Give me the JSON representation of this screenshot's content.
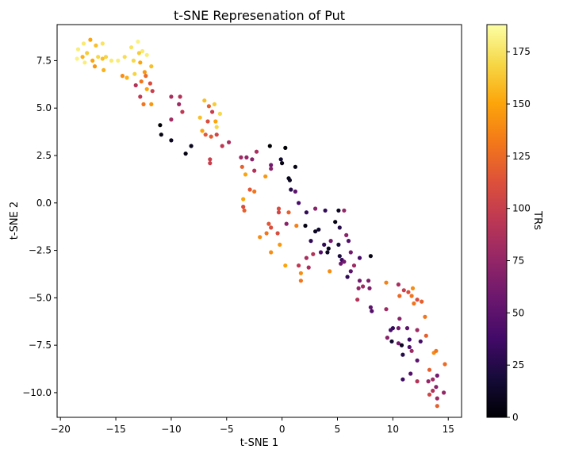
{
  "chart_data": {
    "type": "scatter",
    "title": "t-SNE Represenation of Put",
    "xlabel": "t-SNE 1",
    "ylabel": "t-SNE 2",
    "xlim": [
      -20.3,
      16.2
    ],
    "ylim": [
      -11.3,
      9.4
    ],
    "xticks": [
      -20,
      -15,
      -10,
      -5,
      0,
      5,
      10,
      15
    ],
    "xtick_labels": [
      "−20",
      "−15",
      "−10",
      "−5",
      "0",
      "5",
      "10",
      "15"
    ],
    "yticks": [
      -10.0,
      -7.5,
      -5.0,
      -2.5,
      0.0,
      2.5,
      5.0,
      7.5
    ],
    "ytick_labels": [
      "−10.0",
      "−7.5",
      "−5.0",
      "−2.5",
      "0.0",
      "2.5",
      "5.0",
      "7.5"
    ],
    "grid": false,
    "legend": "none",
    "colorbar": {
      "label": "TRs",
      "colormap": "inferno",
      "range": [
        0,
        188
      ],
      "ticks": [
        0,
        25,
        50,
        75,
        100,
        125,
        150,
        175
      ],
      "tick_labels": [
        "0",
        "25",
        "50",
        "75",
        "100",
        "125",
        "150",
        "175"
      ]
    },
    "points": [
      {
        "x": -18.4,
        "y": 8.1,
        "c": 180
      },
      {
        "x": -17.9,
        "y": 8.4,
        "c": 178
      },
      {
        "x": -17.3,
        "y": 8.6,
        "c": 150
      },
      {
        "x": -16.8,
        "y": 8.3,
        "c": 160
      },
      {
        "x": -16.2,
        "y": 8.4,
        "c": 175
      },
      {
        "x": -18.0,
        "y": 7.7,
        "c": 155
      },
      {
        "x": -17.6,
        "y": 7.9,
        "c": 165
      },
      {
        "x": -17.1,
        "y": 7.5,
        "c": 150
      },
      {
        "x": -16.6,
        "y": 7.7,
        "c": 170
      },
      {
        "x": -16.2,
        "y": 7.6,
        "c": 160
      },
      {
        "x": -15.9,
        "y": 7.7,
        "c": 168
      },
      {
        "x": -18.5,
        "y": 7.6,
        "c": 182
      },
      {
        "x": -17.8,
        "y": 7.4,
        "c": 180
      },
      {
        "x": -16.9,
        "y": 7.2,
        "c": 145
      },
      {
        "x": -16.1,
        "y": 7.0,
        "c": 155
      },
      {
        "x": -15.4,
        "y": 7.5,
        "c": 178
      },
      {
        "x": -14.8,
        "y": 7.5,
        "c": 180
      },
      {
        "x": -14.2,
        "y": 7.7,
        "c": 172
      },
      {
        "x": -13.6,
        "y": 8.2,
        "c": 175
      },
      {
        "x": -13.0,
        "y": 8.5,
        "c": 182
      },
      {
        "x": -12.6,
        "y": 8.0,
        "c": 178
      },
      {
        "x": -12.2,
        "y": 7.8,
        "c": 180
      },
      {
        "x": -12.9,
        "y": 7.9,
        "c": 165
      },
      {
        "x": -13.4,
        "y": 7.5,
        "c": 170
      },
      {
        "x": -12.8,
        "y": 7.4,
        "c": 150
      },
      {
        "x": -11.8,
        "y": 7.2,
        "c": 160
      },
      {
        "x": -12.4,
        "y": 6.9,
        "c": 145
      },
      {
        "x": -13.3,
        "y": 6.8,
        "c": 168
      },
      {
        "x": -14.4,
        "y": 6.7,
        "c": 140
      },
      {
        "x": -14.0,
        "y": 6.6,
        "c": 155
      },
      {
        "x": -12.7,
        "y": 6.4,
        "c": 130
      },
      {
        "x": -12.3,
        "y": 6.7,
        "c": 125
      },
      {
        "x": -11.9,
        "y": 6.3,
        "c": 110
      },
      {
        "x": -13.2,
        "y": 6.2,
        "c": 90
      },
      {
        "x": -12.2,
        "y": 6.0,
        "c": 150
      },
      {
        "x": -12.8,
        "y": 5.6,
        "c": 95
      },
      {
        "x": -11.7,
        "y": 5.9,
        "c": 100
      },
      {
        "x": -12.5,
        "y": 5.2,
        "c": 130
      },
      {
        "x": -11.8,
        "y": 5.2,
        "c": 145
      },
      {
        "x": -10.0,
        "y": 5.6,
        "c": 85
      },
      {
        "x": -9.2,
        "y": 5.6,
        "c": 90
      },
      {
        "x": -9.3,
        "y": 5.2,
        "c": 80
      },
      {
        "x": -9.0,
        "y": 4.8,
        "c": 95
      },
      {
        "x": -10.0,
        "y": 4.4,
        "c": 82
      },
      {
        "x": -11.0,
        "y": 4.1,
        "c": 0
      },
      {
        "x": -10.9,
        "y": 3.6,
        "c": 5
      },
      {
        "x": -10.0,
        "y": 3.3,
        "c": 10
      },
      {
        "x": -8.7,
        "y": 2.6,
        "c": 5
      },
      {
        "x": -8.2,
        "y": 3.0,
        "c": 8
      },
      {
        "x": -7.0,
        "y": 5.4,
        "c": 160
      },
      {
        "x": -6.6,
        "y": 5.1,
        "c": 120
      },
      {
        "x": -6.3,
        "y": 4.8,
        "c": 100
      },
      {
        "x": -6.1,
        "y": 5.2,
        "c": 165
      },
      {
        "x": -5.6,
        "y": 4.7,
        "c": 170
      },
      {
        "x": -7.4,
        "y": 4.5,
        "c": 160
      },
      {
        "x": -6.7,
        "y": 4.3,
        "c": 110
      },
      {
        "x": -5.9,
        "y": 4.0,
        "c": 170
      },
      {
        "x": -6.0,
        "y": 4.3,
        "c": 150
      },
      {
        "x": -7.2,
        "y": 3.8,
        "c": 150
      },
      {
        "x": -6.9,
        "y": 3.6,
        "c": 115
      },
      {
        "x": -6.4,
        "y": 3.5,
        "c": 118
      },
      {
        "x": -5.9,
        "y": 3.6,
        "c": 105
      },
      {
        "x": -5.4,
        "y": 3.0,
        "c": 95
      },
      {
        "x": -4.8,
        "y": 3.2,
        "c": 85
      },
      {
        "x": -6.5,
        "y": 2.3,
        "c": 100
      },
      {
        "x": -6.5,
        "y": 2.1,
        "c": 100
      },
      {
        "x": -3.7,
        "y": 2.4,
        "c": 80
      },
      {
        "x": -3.2,
        "y": 2.4,
        "c": 75
      },
      {
        "x": -2.3,
        "y": 2.7,
        "c": 85
      },
      {
        "x": -2.7,
        "y": 2.3,
        "c": 70
      },
      {
        "x": -3.6,
        "y": 1.9,
        "c": 120
      },
      {
        "x": -2.5,
        "y": 1.7,
        "c": 90
      },
      {
        "x": -3.3,
        "y": 1.5,
        "c": 150
      },
      {
        "x": -1.5,
        "y": 1.4,
        "c": 145
      },
      {
        "x": -1.1,
        "y": 3.0,
        "c": 0
      },
      {
        "x": 0.3,
        "y": 2.9,
        "c": 0
      },
      {
        "x": -0.1,
        "y": 2.3,
        "c": 15
      },
      {
        "x": 0.0,
        "y": 2.1,
        "c": 5
      },
      {
        "x": -1.0,
        "y": 2.0,
        "c": 60
      },
      {
        "x": -1.0,
        "y": 1.8,
        "c": 70
      },
      {
        "x": 0.6,
        "y": 1.3,
        "c": 8
      },
      {
        "x": 0.7,
        "y": 1.2,
        "c": 10
      },
      {
        "x": 1.2,
        "y": 1.9,
        "c": 5
      },
      {
        "x": 0.8,
        "y": 0.7,
        "c": 25
      },
      {
        "x": 1.2,
        "y": 0.6,
        "c": 50
      },
      {
        "x": 1.5,
        "y": 0.0,
        "c": 40
      },
      {
        "x": -2.9,
        "y": 0.7,
        "c": 115
      },
      {
        "x": -2.5,
        "y": 0.6,
        "c": 130
      },
      {
        "x": -3.5,
        "y": 0.2,
        "c": 150
      },
      {
        "x": -3.5,
        "y": -0.2,
        "c": 110
      },
      {
        "x": -3.4,
        "y": -0.4,
        "c": 120
      },
      {
        "x": -0.3,
        "y": -0.3,
        "c": 110
      },
      {
        "x": -0.3,
        "y": -0.5,
        "c": 105
      },
      {
        "x": 0.6,
        "y": -0.5,
        "c": 120
      },
      {
        "x": 2.2,
        "y": -0.5,
        "c": 30
      },
      {
        "x": 3.0,
        "y": -0.3,
        "c": 70
      },
      {
        "x": 3.9,
        "y": -0.4,
        "c": 30
      },
      {
        "x": 5.1,
        "y": -0.4,
        "c": 10
      },
      {
        "x": 5.6,
        "y": -0.4,
        "c": 75
      },
      {
        "x": -1.2,
        "y": -1.1,
        "c": 115
      },
      {
        "x": -1.0,
        "y": -1.3,
        "c": 110
      },
      {
        "x": 0.4,
        "y": -1.1,
        "c": 70
      },
      {
        "x": 1.3,
        "y": -1.2,
        "c": 135
      },
      {
        "x": 2.1,
        "y": -1.2,
        "c": 5
      },
      {
        "x": 3.0,
        "y": -1.5,
        "c": 10
      },
      {
        "x": 3.3,
        "y": -1.4,
        "c": 15
      },
      {
        "x": 4.8,
        "y": -1.0,
        "c": 5
      },
      {
        "x": 5.2,
        "y": -1.3,
        "c": 25
      },
      {
        "x": 5.8,
        "y": -1.7,
        "c": 70
      },
      {
        "x": -2.0,
        "y": -1.8,
        "c": 140
      },
      {
        "x": -1.4,
        "y": -1.6,
        "c": 130
      },
      {
        "x": -0.4,
        "y": -1.6,
        "c": 110
      },
      {
        "x": 2.6,
        "y": -2.0,
        "c": 30
      },
      {
        "x": 3.8,
        "y": -2.2,
        "c": 30
      },
      {
        "x": 4.4,
        "y": -2.0,
        "c": 60
      },
      {
        "x": 5.1,
        "y": -2.2,
        "c": 20
      },
      {
        "x": 6.0,
        "y": -2.0,
        "c": 45
      },
      {
        "x": -0.2,
        "y": -2.2,
        "c": 145
      },
      {
        "x": -1.0,
        "y": -2.6,
        "c": 140
      },
      {
        "x": 2.2,
        "y": -2.9,
        "c": 85
      },
      {
        "x": 2.8,
        "y": -2.7,
        "c": 90
      },
      {
        "x": 3.5,
        "y": -2.6,
        "c": 45
      },
      {
        "x": 4.2,
        "y": -2.4,
        "c": 10
      },
      {
        "x": 4.1,
        "y": -2.6,
        "c": 10
      },
      {
        "x": 5.2,
        "y": -2.8,
        "c": 20
      },
      {
        "x": 5.4,
        "y": -3.0,
        "c": 35
      },
      {
        "x": 6.2,
        "y": -2.6,
        "c": 60
      },
      {
        "x": 0.3,
        "y": -3.3,
        "c": 150
      },
      {
        "x": 1.5,
        "y": -3.3,
        "c": 95
      },
      {
        "x": 2.4,
        "y": -3.4,
        "c": 85
      },
      {
        "x": 5.3,
        "y": -3.2,
        "c": 55
      },
      {
        "x": 5.6,
        "y": -3.1,
        "c": 60
      },
      {
        "x": 7.0,
        "y": -2.9,
        "c": 40
      },
      {
        "x": 8.0,
        "y": -2.8,
        "c": 5
      },
      {
        "x": 1.7,
        "y": -3.7,
        "c": 140
      },
      {
        "x": 4.3,
        "y": -3.6,
        "c": 140
      },
      {
        "x": 6.2,
        "y": -3.6,
        "c": 50
      },
      {
        "x": 6.5,
        "y": -3.3,
        "c": 80
      },
      {
        "x": 1.7,
        "y": -4.1,
        "c": 130
      },
      {
        "x": 5.9,
        "y": -3.9,
        "c": 30
      },
      {
        "x": 7.0,
        "y": -4.1,
        "c": 60
      },
      {
        "x": 7.8,
        "y": -4.1,
        "c": 65
      },
      {
        "x": 6.9,
        "y": -4.5,
        "c": 75
      },
      {
        "x": 7.3,
        "y": -4.4,
        "c": 80
      },
      {
        "x": 7.9,
        "y": -4.5,
        "c": 65
      },
      {
        "x": 6.8,
        "y": -5.1,
        "c": 90
      },
      {
        "x": 8.0,
        "y": -5.5,
        "c": 50
      },
      {
        "x": 8.1,
        "y": -5.7,
        "c": 45
      },
      {
        "x": 9.4,
        "y": -4.2,
        "c": 135
      },
      {
        "x": 10.5,
        "y": -4.3,
        "c": 85
      },
      {
        "x": 11.0,
        "y": -4.6,
        "c": 100
      },
      {
        "x": 11.4,
        "y": -4.7,
        "c": 110
      },
      {
        "x": 11.8,
        "y": -4.5,
        "c": 140
      },
      {
        "x": 10.6,
        "y": -4.9,
        "c": 125
      },
      {
        "x": 11.7,
        "y": -4.9,
        "c": 130
      },
      {
        "x": 12.2,
        "y": -5.1,
        "c": 110
      },
      {
        "x": 12.6,
        "y": -5.2,
        "c": 120
      },
      {
        "x": 11.9,
        "y": -5.3,
        "c": 130
      },
      {
        "x": 9.4,
        "y": -5.6,
        "c": 80
      },
      {
        "x": 10.6,
        "y": -6.1,
        "c": 70
      },
      {
        "x": 12.9,
        "y": -6.0,
        "c": 130
      },
      {
        "x": 10.0,
        "y": -6.6,
        "c": 30
      },
      {
        "x": 9.8,
        "y": -6.7,
        "c": 40
      },
      {
        "x": 10.5,
        "y": -6.6,
        "c": 60
      },
      {
        "x": 11.3,
        "y": -6.6,
        "c": 50
      },
      {
        "x": 12.2,
        "y": -6.7,
        "c": 80
      },
      {
        "x": 9.5,
        "y": -7.1,
        "c": 70
      },
      {
        "x": 9.9,
        "y": -7.3,
        "c": 15
      },
      {
        "x": 10.5,
        "y": -7.4,
        "c": 60
      },
      {
        "x": 10.8,
        "y": -7.5,
        "c": 10
      },
      {
        "x": 11.5,
        "y": -7.2,
        "c": 35
      },
      {
        "x": 11.5,
        "y": -7.6,
        "c": 45
      },
      {
        "x": 12.5,
        "y": -7.3,
        "c": 40
      },
      {
        "x": 13.0,
        "y": -7.0,
        "c": 120
      },
      {
        "x": 11.7,
        "y": -7.8,
        "c": 80
      },
      {
        "x": 10.9,
        "y": -8.0,
        "c": 25
      },
      {
        "x": 12.2,
        "y": -8.3,
        "c": 50
      },
      {
        "x": 13.7,
        "y": -7.9,
        "c": 140
      },
      {
        "x": 13.9,
        "y": -7.8,
        "c": 130
      },
      {
        "x": 11.6,
        "y": -9.0,
        "c": 45
      },
      {
        "x": 13.3,
        "y": -8.8,
        "c": 120
      },
      {
        "x": 13.6,
        "y": -9.3,
        "c": 80
      },
      {
        "x": 14.7,
        "y": -8.5,
        "c": 125
      },
      {
        "x": 10.9,
        "y": -9.3,
        "c": 35
      },
      {
        "x": 12.2,
        "y": -9.4,
        "c": 90
      },
      {
        "x": 13.2,
        "y": -9.4,
        "c": 75
      },
      {
        "x": 14.0,
        "y": -9.1,
        "c": 60
      },
      {
        "x": 13.9,
        "y": -9.7,
        "c": 70
      },
      {
        "x": 13.6,
        "y": -9.9,
        "c": 90
      },
      {
        "x": 14.6,
        "y": -10.0,
        "c": 75
      },
      {
        "x": 13.3,
        "y": -10.1,
        "c": 105
      },
      {
        "x": 14.0,
        "y": -10.3,
        "c": 80
      },
      {
        "x": 14.0,
        "y": -10.7,
        "c": 120
      }
    ]
  }
}
